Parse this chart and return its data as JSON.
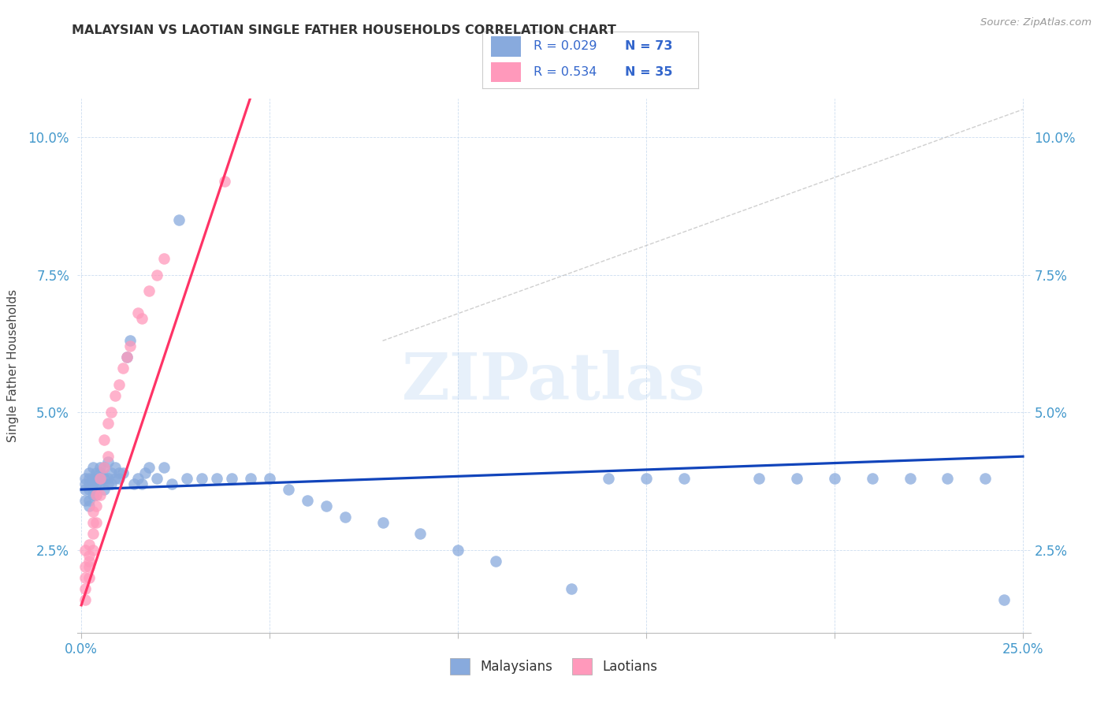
{
  "title": "MALAYSIAN VS LAOTIAN SINGLE FATHER HOUSEHOLDS CORRELATION CHART",
  "source": "Source: ZipAtlas.com",
  "ylabel": "Single Father Households",
  "xlim": [
    -0.001,
    0.252
  ],
  "ylim": [
    0.01,
    0.107
  ],
  "xticks": [
    0.0,
    0.05,
    0.1,
    0.15,
    0.2,
    0.25
  ],
  "xticklabels": [
    "0.0%",
    "",
    "",
    "",
    "",
    "25.0%"
  ],
  "yticks": [
    0.025,
    0.05,
    0.075,
    0.1
  ],
  "yticklabels": [
    "2.5%",
    "5.0%",
    "7.5%",
    "10.0%"
  ],
  "blue_color": "#88AADD",
  "pink_color": "#FF99BB",
  "trend_blue": "#1144BB",
  "trend_pink": "#FF3366",
  "watermark_text": "ZIPatlas",
  "r_mal": "0.029",
  "n_mal": "73",
  "r_lao": "0.534",
  "n_lao": "35",
  "legend_text_color": "#3366CC",
  "malaysian_x": [
    0.001,
    0.001,
    0.001,
    0.001,
    0.002,
    0.002,
    0.002,
    0.002,
    0.002,
    0.002,
    0.003,
    0.003,
    0.003,
    0.003,
    0.003,
    0.004,
    0.004,
    0.004,
    0.004,
    0.005,
    0.005,
    0.005,
    0.005,
    0.006,
    0.006,
    0.006,
    0.007,
    0.007,
    0.007,
    0.008,
    0.008,
    0.009,
    0.009,
    0.01,
    0.01,
    0.011,
    0.012,
    0.013,
    0.014,
    0.015,
    0.016,
    0.017,
    0.018,
    0.02,
    0.022,
    0.024,
    0.026,
    0.028,
    0.032,
    0.036,
    0.04,
    0.045,
    0.05,
    0.055,
    0.06,
    0.065,
    0.07,
    0.08,
    0.09,
    0.1,
    0.11,
    0.13,
    0.14,
    0.15,
    0.16,
    0.18,
    0.19,
    0.2,
    0.21,
    0.22,
    0.23,
    0.24,
    0.245
  ],
  "malaysian_y": [
    0.038,
    0.036,
    0.034,
    0.037,
    0.038,
    0.036,
    0.034,
    0.039,
    0.037,
    0.033,
    0.038,
    0.036,
    0.04,
    0.037,
    0.035,
    0.039,
    0.037,
    0.035,
    0.038,
    0.039,
    0.037,
    0.038,
    0.04,
    0.038,
    0.04,
    0.036,
    0.038,
    0.037,
    0.041,
    0.039,
    0.037,
    0.038,
    0.04,
    0.038,
    0.039,
    0.039,
    0.06,
    0.063,
    0.037,
    0.038,
    0.037,
    0.039,
    0.04,
    0.038,
    0.04,
    0.037,
    0.085,
    0.038,
    0.038,
    0.038,
    0.038,
    0.038,
    0.038,
    0.036,
    0.034,
    0.033,
    0.031,
    0.03,
    0.028,
    0.025,
    0.023,
    0.018,
    0.038,
    0.038,
    0.038,
    0.038,
    0.038,
    0.038,
    0.038,
    0.038,
    0.038,
    0.038,
    0.016
  ],
  "laotian_x": [
    0.001,
    0.001,
    0.001,
    0.001,
    0.001,
    0.002,
    0.002,
    0.002,
    0.002,
    0.002,
    0.003,
    0.003,
    0.003,
    0.003,
    0.004,
    0.004,
    0.004,
    0.005,
    0.005,
    0.006,
    0.006,
    0.007,
    0.007,
    0.008,
    0.009,
    0.01,
    0.011,
    0.012,
    0.013,
    0.015,
    0.016,
    0.018,
    0.02,
    0.022,
    0.038
  ],
  "laotian_y": [
    0.022,
    0.02,
    0.018,
    0.025,
    0.016,
    0.022,
    0.024,
    0.02,
    0.026,
    0.023,
    0.025,
    0.028,
    0.03,
    0.032,
    0.03,
    0.035,
    0.033,
    0.035,
    0.038,
    0.04,
    0.045,
    0.042,
    0.048,
    0.05,
    0.053,
    0.055,
    0.058,
    0.06,
    0.062,
    0.068,
    0.067,
    0.072,
    0.075,
    0.078,
    0.092
  ]
}
